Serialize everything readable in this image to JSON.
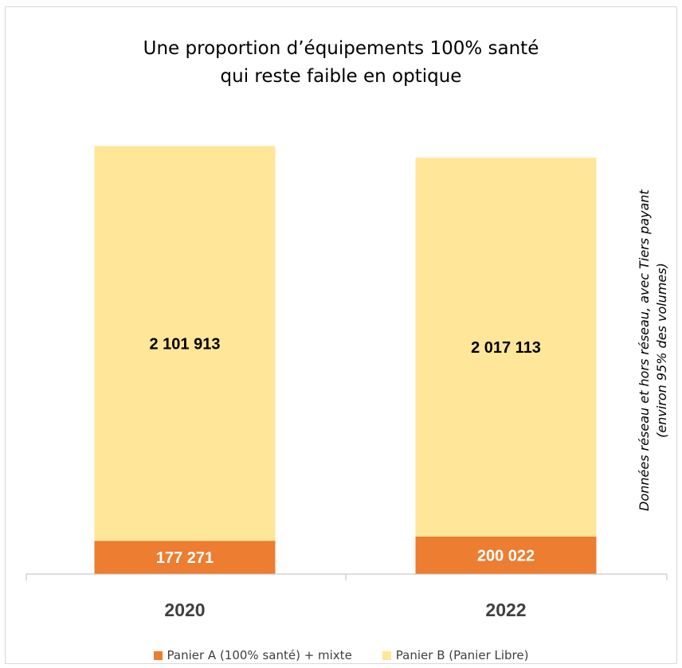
{
  "chart_data": {
    "type": "bar",
    "stacked": true,
    "title_lines": [
      "Une proportion d’équipements 100% santé",
      "qui reste faible en optique"
    ],
    "categories": [
      "2020",
      "2022"
    ],
    "series": [
      {
        "name": "Panier A (100% santé) + mixte",
        "values": [
          177271,
          200022
        ],
        "labels": [
          "177 271",
          "200 022"
        ],
        "color": "#ED7D31",
        "label_color": "#ffffff"
      },
      {
        "name": "Panier B (Panier Libre)",
        "values": [
          2101913,
          2017113
        ],
        "labels": [
          "2 101 913",
          "2 017 113"
        ],
        "color": "#FFE699",
        "label_color": "#000000"
      }
    ],
    "ylim": [
      0,
      2400000
    ],
    "grid": false,
    "legend_position": "bottom",
    "side_note_lines": [
      "Données réseau et hors réseau, avec Tiers payant",
      "(environ 95% des volumes)"
    ]
  }
}
